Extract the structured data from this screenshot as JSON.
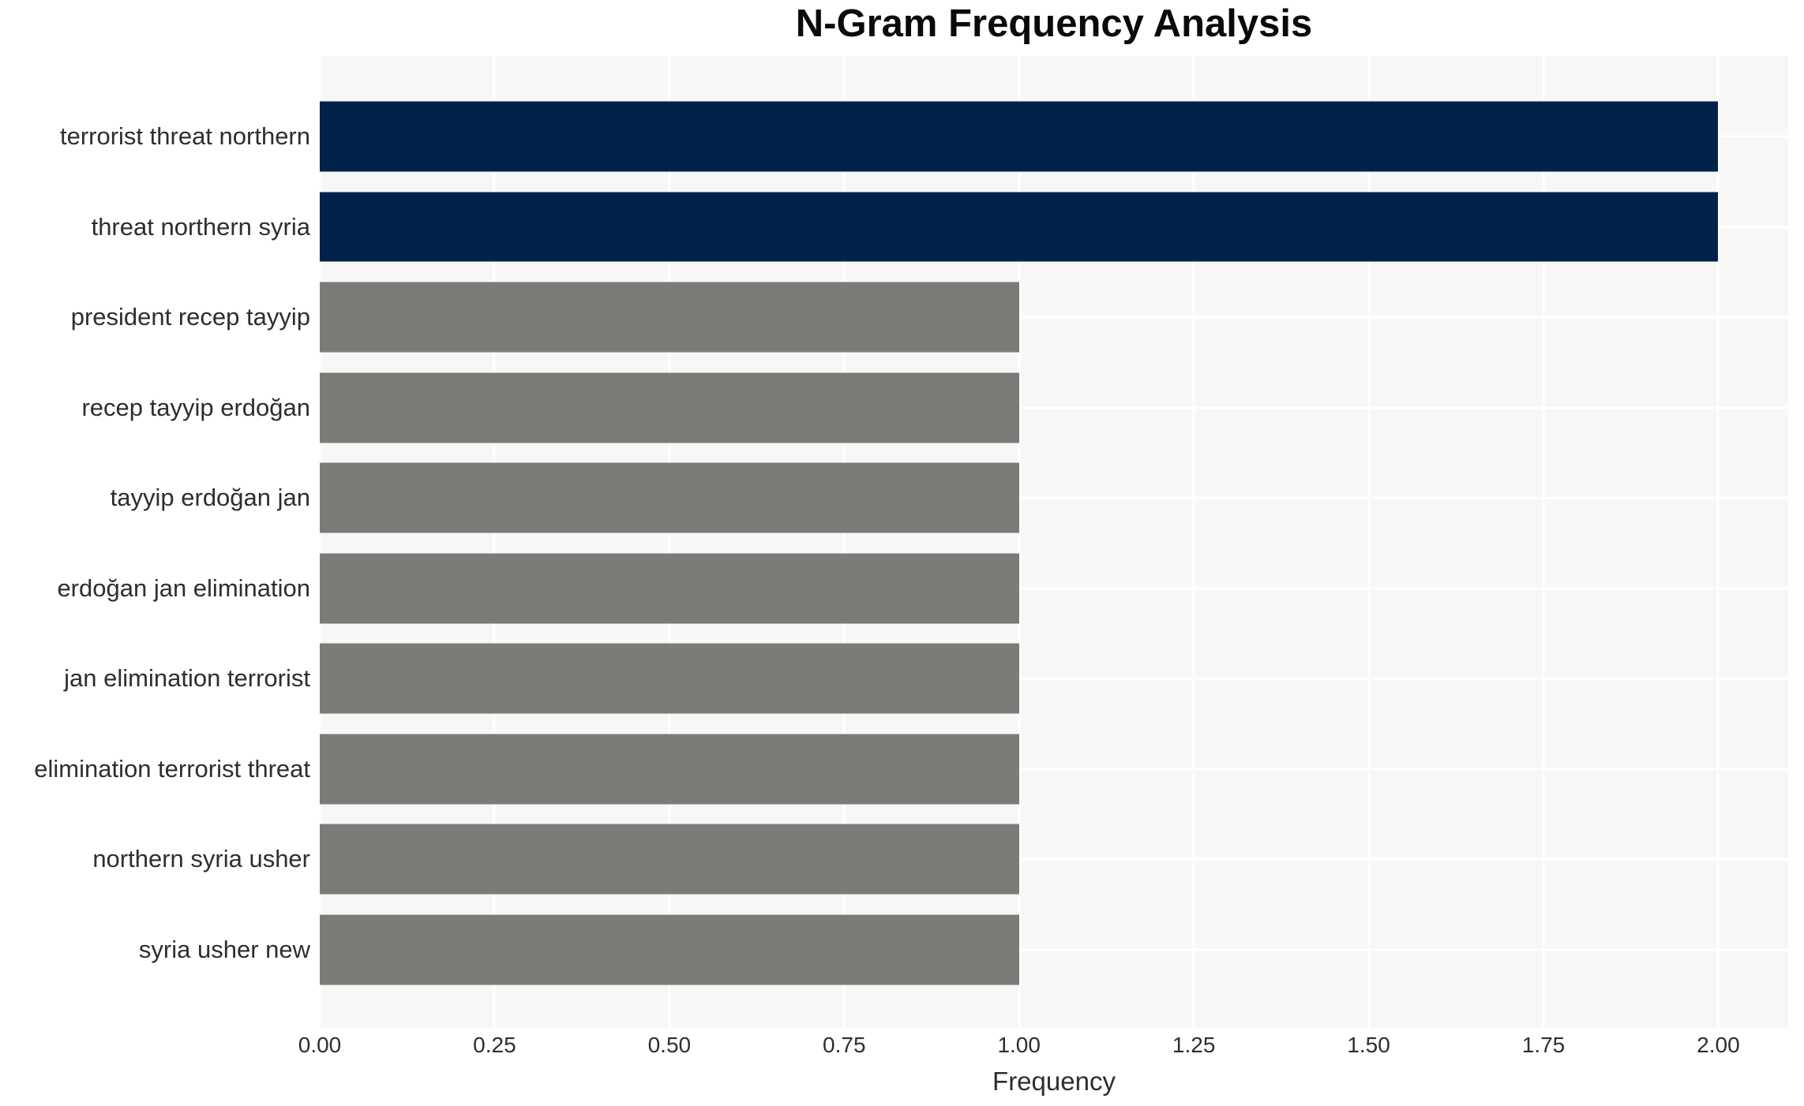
{
  "chart_data": {
    "type": "bar",
    "orientation": "horizontal",
    "title": "N-Gram Frequency Analysis",
    "xlabel": "Frequency",
    "ylabel": "",
    "categories": [
      "terrorist threat northern",
      "threat northern syria",
      "president recep tayyip",
      "recep tayyip erdoğan",
      "tayyip erdoğan jan",
      "erdoğan jan elimination",
      "jan elimination terrorist",
      "elimination terrorist threat",
      "northern syria usher",
      "syria usher new"
    ],
    "values": [
      2,
      2,
      1,
      1,
      1,
      1,
      1,
      1,
      1,
      1
    ],
    "bar_colors": [
      "#022349",
      "#022349",
      "#7b7b78",
      "#7b7b78",
      "#7b7b78",
      "#7b7b78",
      "#7b7b78",
      "#7b7b78",
      "#7b7b78",
      "#7b7b78"
    ],
    "xlim": [
      0,
      2.1
    ],
    "xticks": [
      0,
      0.25,
      0.5,
      0.75,
      1.0,
      1.25,
      1.5,
      1.75,
      2.0
    ],
    "xtick_labels": [
      "0.00",
      "0.25",
      "0.50",
      "0.75",
      "1.00",
      "1.25",
      "1.50",
      "1.75",
      "2.00"
    ],
    "grid": true,
    "legend": false,
    "colors": {
      "figure_bg": "#ffffff",
      "plot_bg": "#f7f7f7",
      "gridline": "#ffffff",
      "bar_high": "#022349",
      "bar_low": "#7b7b78",
      "tick_text": "#2e2e2e",
      "title_text": "#0a0a0a"
    }
  }
}
